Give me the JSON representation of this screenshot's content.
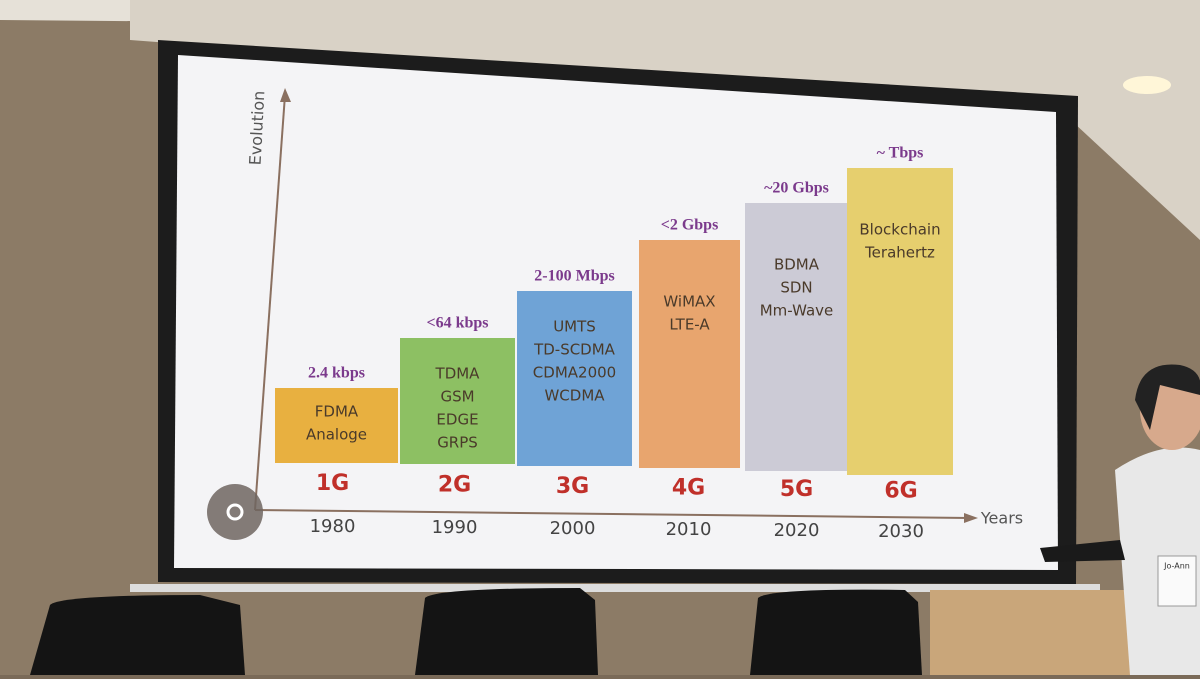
{
  "slide": {
    "y_axis_label": "Evolution",
    "x_axis_label": "Years",
    "generations": [
      {
        "speed": "2.4 kbps",
        "technologies": [
          "FDMA",
          "Analoge"
        ],
        "generation": "1G",
        "year": "1980"
      },
      {
        "speed": "<64 kbps",
        "technologies": [
          "TDMA",
          "GSM",
          "EDGE",
          "GRPS"
        ],
        "generation": "2G",
        "year": "1990"
      },
      {
        "speed": "2-100 Mbps",
        "technologies": [
          "UMTS",
          "TD-SCDMA",
          "CDMA2000",
          "WCDMA"
        ],
        "generation": "3G",
        "year": "2000"
      },
      {
        "speed": "<2 Gbps",
        "technologies": [
          "WiMAX",
          "LTE-A"
        ],
        "generation": "4G",
        "year": "2010"
      },
      {
        "speed": "~20 Gbps",
        "technologies": [
          "BDMA",
          "SDN",
          "Mm-Wave"
        ],
        "generation": "5G",
        "year": "2020"
      },
      {
        "speed": "~ Tbps",
        "technologies": [
          "Blockchain",
          "Terahertz"
        ],
        "generation": "6G",
        "year": "2030"
      }
    ]
  },
  "speaker_badge": "Jo-Ann"
}
